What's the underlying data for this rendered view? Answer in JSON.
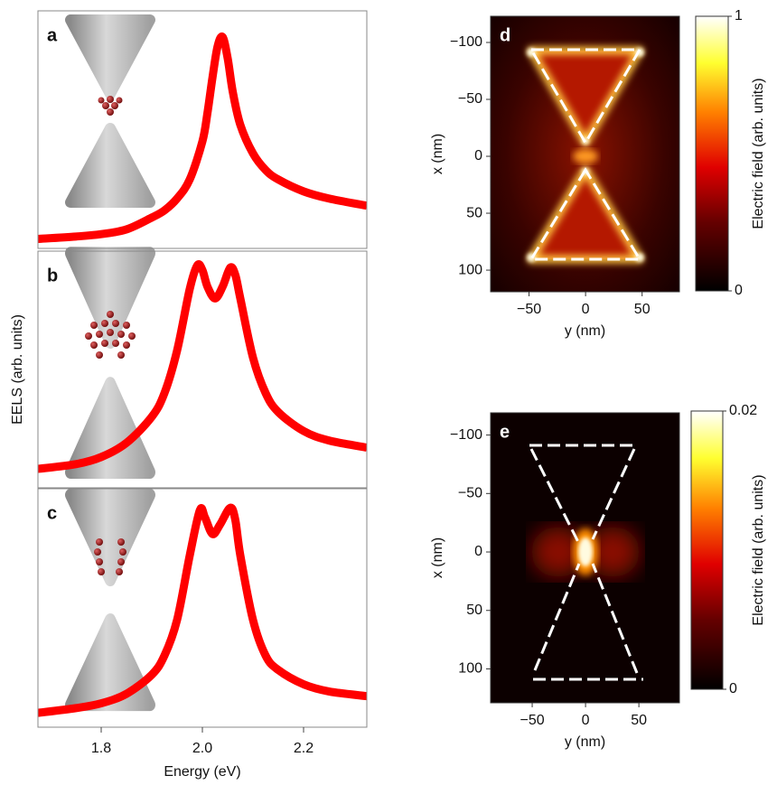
{
  "chart_data": [
    {
      "type": "line",
      "label": "a",
      "color": "#ff0000",
      "x": [
        1.675,
        1.75,
        1.8,
        1.85,
        1.9,
        1.925,
        1.95,
        1.975,
        2.0,
        2.01,
        2.02,
        2.03,
        2.04,
        2.05,
        2.06,
        2.075,
        2.1,
        2.125,
        2.15,
        2.2,
        2.25,
        2.325
      ],
      "values": [
        0.04,
        0.05,
        0.06,
        0.08,
        0.13,
        0.16,
        0.21,
        0.29,
        0.45,
        0.57,
        0.72,
        0.85,
        0.89,
        0.8,
        0.66,
        0.52,
        0.4,
        0.33,
        0.29,
        0.24,
        0.21,
        0.18
      ],
      "xlim": [
        1.675,
        2.325
      ],
      "ylim": [
        0,
        1
      ]
    },
    {
      "type": "line",
      "label": "b",
      "color": "#ff0000",
      "ylabel": "EELS (arb. units)",
      "x": [
        1.675,
        1.75,
        1.8,
        1.85,
        1.9,
        1.925,
        1.95,
        1.975,
        1.99,
        2.0,
        2.01,
        2.025,
        2.04,
        2.055,
        2.065,
        2.075,
        2.1,
        2.125,
        2.15,
        2.2,
        2.25,
        2.325
      ],
      "values": [
        0.08,
        0.1,
        0.13,
        0.19,
        0.3,
        0.4,
        0.58,
        0.84,
        0.94,
        0.92,
        0.85,
        0.8,
        0.85,
        0.93,
        0.9,
        0.8,
        0.55,
        0.4,
        0.32,
        0.24,
        0.2,
        0.17
      ],
      "xlim": [
        1.675,
        2.325
      ],
      "ylim": [
        0,
        1
      ]
    },
    {
      "type": "line",
      "label": "c",
      "color": "#ff0000",
      "xlabel": "Energy (eV)",
      "x": [
        1.675,
        1.75,
        1.8,
        1.85,
        1.9,
        1.925,
        1.95,
        1.975,
        1.995,
        2.005,
        2.02,
        2.035,
        2.055,
        2.065,
        2.075,
        2.1,
        2.125,
        2.15,
        2.2,
        2.25,
        2.325
      ],
      "values": [
        0.06,
        0.08,
        0.1,
        0.14,
        0.22,
        0.3,
        0.45,
        0.72,
        0.91,
        0.88,
        0.81,
        0.85,
        0.92,
        0.87,
        0.72,
        0.45,
        0.3,
        0.24,
        0.18,
        0.15,
        0.13
      ],
      "xlim": [
        1.675,
        2.325
      ],
      "ylim": [
        0,
        1
      ],
      "xticks": [
        1.8,
        {
          "value": 2,
          "label": "2.0"
        },
        2.2
      ]
    },
    {
      "type": "heatmap",
      "label": "d",
      "xlabel": "y (nm)",
      "ylabel": "x (nm)",
      "xlim": [
        -84,
        83
      ],
      "ylim": [
        119,
        -123
      ],
      "xticks": [
        {
          "value": -50,
          "label": "−50"
        },
        0,
        50
      ],
      "yticks": [
        {
          "value": -100,
          "label": "−100"
        },
        {
          "value": -50,
          "label": "−50"
        },
        0,
        50,
        100
      ],
      "colorbar": {
        "label": "Electric field (arb. units)",
        "lim": [
          0,
          1
        ],
        "ticks": [
          0,
          1
        ]
      }
    },
    {
      "type": "heatmap",
      "label": "e",
      "xlabel": "y (nm)",
      "ylabel": "x (nm)",
      "xlim": [
        -89,
        88
      ],
      "ylim": [
        129,
        -119
      ],
      "xticks": [
        {
          "value": -50,
          "label": "−50"
        },
        0,
        50
      ],
      "yticks": [
        {
          "value": -100,
          "label": "−100"
        },
        {
          "value": -50,
          "label": "−50"
        },
        0,
        50,
        100
      ],
      "colorbar": {
        "label": "Electric field (arb. units)",
        "lim": [
          0,
          0.02
        ],
        "ticks": [
          0,
          0.02
        ]
      }
    }
  ]
}
